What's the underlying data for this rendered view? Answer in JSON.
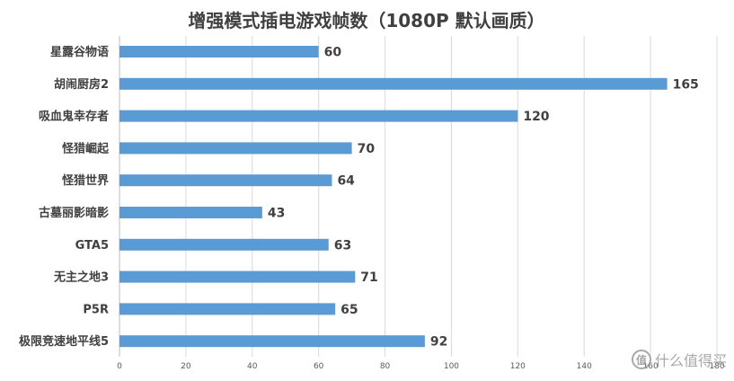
{
  "chart_data": {
    "type": "bar",
    "orientation": "horizontal",
    "title": "增强模式插电游戏帧数（1080P 默认画质）",
    "categories": [
      "星露谷物语",
      "胡闹厨房2",
      "吸血鬼幸存者",
      "怪猎崛起",
      "怪猎世界",
      "古墓丽影暗影",
      "GTA5",
      "无主之地3",
      "P5R",
      "极限竞速地平线5"
    ],
    "values": [
      60,
      165,
      120,
      70,
      64,
      43,
      63,
      71,
      65,
      92
    ],
    "xlim": [
      0,
      180
    ],
    "xticks": [
      0,
      20,
      40,
      60,
      80,
      100,
      120,
      140,
      160,
      180
    ],
    "xlabel": "",
    "ylabel": "",
    "grid": "vertical",
    "legend": "none",
    "colors": {
      "bar": "#5b9bd5",
      "text": "#404040",
      "grid": "#d9d9d9"
    }
  },
  "watermark": {
    "text": "什么值得买",
    "icon": "值"
  }
}
